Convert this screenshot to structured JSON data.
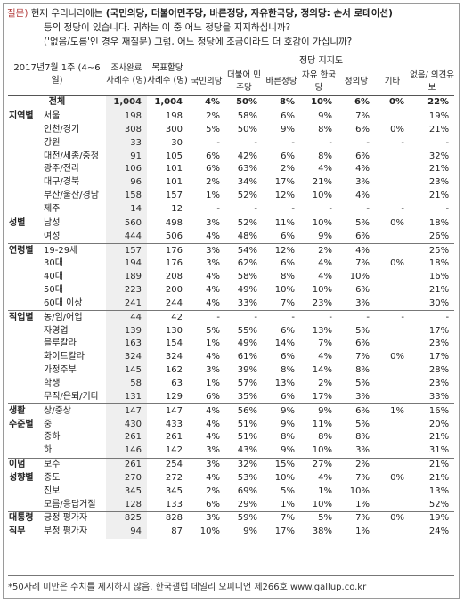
{
  "question": {
    "tag": "질문)",
    "line1_prefix": "현재 우리나라에는",
    "line1_parties": "(국민의당, 더불어민주당, 바른정당, 자유한국당, 정의당: 순서 로테이션)",
    "line2": "등의 정당이 있습니다. 귀하는 이 중 어느 정당을 지지하십니까?",
    "line3": "('없음/모름'인 경우 재질문) 그럼, 어느 정당에 조금이라도 더 호감이 가십니까?"
  },
  "header": {
    "date": "2017년7월 1주 (4~6일)",
    "survey_count": "조사완료 사례수 (명)",
    "target_count": "목표할당 사례수 (명)",
    "group_title": "정당 지지도",
    "parties": [
      "국민의당",
      "더불어 민주당",
      "바른정당",
      "자유 한국당",
      "정의당",
      "기타",
      "없음/ 의견유보"
    ]
  },
  "rows": [
    {
      "cat": "",
      "label": "전체",
      "survey": "1,004",
      "target": "1,004",
      "vals": [
        "4%",
        "50%",
        "8%",
        "10%",
        "6%",
        "0%",
        "22%"
      ],
      "total": true
    },
    {
      "cat": "지역별",
      "label": "서울",
      "survey": "198",
      "target": "198",
      "vals": [
        "2%",
        "58%",
        "6%",
        "9%",
        "7%",
        "",
        "19%"
      ],
      "sep": true
    },
    {
      "cat": "",
      "label": "인천/경기",
      "survey": "308",
      "target": "300",
      "vals": [
        "5%",
        "50%",
        "9%",
        "8%",
        "6%",
        "0%",
        "21%"
      ]
    },
    {
      "cat": "",
      "label": "강원",
      "survey": "33",
      "target": "30",
      "vals": [
        "-",
        "-",
        "-",
        "-",
        "-",
        "-",
        "-"
      ]
    },
    {
      "cat": "",
      "label": "대전/세종/충청",
      "survey": "91",
      "target": "105",
      "vals": [
        "6%",
        "42%",
        "6%",
        "8%",
        "6%",
        "",
        "32%"
      ]
    },
    {
      "cat": "",
      "label": "광주/전라",
      "survey": "106",
      "target": "101",
      "vals": [
        "6%",
        "63%",
        "2%",
        "4%",
        "4%",
        "",
        "21%"
      ]
    },
    {
      "cat": "",
      "label": "대구/경북",
      "survey": "96",
      "target": "101",
      "vals": [
        "2%",
        "34%",
        "17%",
        "21%",
        "3%",
        "",
        "23%"
      ]
    },
    {
      "cat": "",
      "label": "부산/울산/경남",
      "survey": "158",
      "target": "157",
      "vals": [
        "1%",
        "52%",
        "12%",
        "10%",
        "4%",
        "",
        "21%"
      ]
    },
    {
      "cat": "",
      "label": "제주",
      "survey": "14",
      "target": "12",
      "vals": [
        "-",
        "-",
        "-",
        "-",
        "-",
        "-",
        "-"
      ]
    },
    {
      "cat": "성별",
      "label": "남성",
      "survey": "560",
      "target": "498",
      "vals": [
        "3%",
        "52%",
        "11%",
        "10%",
        "5%",
        "0%",
        "18%"
      ],
      "sep": true
    },
    {
      "cat": "",
      "label": "여성",
      "survey": "444",
      "target": "506",
      "vals": [
        "4%",
        "48%",
        "6%",
        "9%",
        "6%",
        "",
        "26%"
      ]
    },
    {
      "cat": "연령별",
      "label": "19-29세",
      "survey": "157",
      "target": "176",
      "vals": [
        "3%",
        "54%",
        "12%",
        "2%",
        "4%",
        "",
        "25%"
      ],
      "sep": true
    },
    {
      "cat": "",
      "label": "30대",
      "survey": "194",
      "target": "176",
      "vals": [
        "3%",
        "62%",
        "6%",
        "4%",
        "7%",
        "0%",
        "18%"
      ]
    },
    {
      "cat": "",
      "label": "40대",
      "survey": "189",
      "target": "208",
      "vals": [
        "4%",
        "58%",
        "8%",
        "4%",
        "10%",
        "",
        "16%"
      ]
    },
    {
      "cat": "",
      "label": "50대",
      "survey": "223",
      "target": "200",
      "vals": [
        "4%",
        "49%",
        "10%",
        "10%",
        "6%",
        "",
        "21%"
      ]
    },
    {
      "cat": "",
      "label": "60대 이상",
      "survey": "241",
      "target": "244",
      "vals": [
        "4%",
        "33%",
        "7%",
        "23%",
        "3%",
        "",
        "30%"
      ]
    },
    {
      "cat": "직업별",
      "label": "농/임/어업",
      "survey": "44",
      "target": "42",
      "vals": [
        "-",
        "-",
        "-",
        "-",
        "-",
        "-",
        "-"
      ],
      "sep": true
    },
    {
      "cat": "",
      "label": "자영업",
      "survey": "139",
      "target": "130",
      "vals": [
        "5%",
        "55%",
        "6%",
        "13%",
        "5%",
        "",
        "17%"
      ]
    },
    {
      "cat": "",
      "label": "블루칼라",
      "survey": "163",
      "target": "154",
      "vals": [
        "1%",
        "49%",
        "14%",
        "7%",
        "6%",
        "",
        "23%"
      ]
    },
    {
      "cat": "",
      "label": "화이트칼라",
      "survey": "324",
      "target": "324",
      "vals": [
        "4%",
        "61%",
        "6%",
        "4%",
        "7%",
        "0%",
        "17%"
      ]
    },
    {
      "cat": "",
      "label": "가정주부",
      "survey": "145",
      "target": "162",
      "vals": [
        "3%",
        "39%",
        "8%",
        "14%",
        "8%",
        "",
        "28%"
      ]
    },
    {
      "cat": "",
      "label": "학생",
      "survey": "58",
      "target": "63",
      "vals": [
        "1%",
        "57%",
        "13%",
        "2%",
        "5%",
        "",
        "23%"
      ]
    },
    {
      "cat": "",
      "label": "무직/은퇴/기타",
      "survey": "131",
      "target": "129",
      "vals": [
        "6%",
        "35%",
        "6%",
        "17%",
        "3%",
        "",
        "33%"
      ]
    },
    {
      "cat": "생활",
      "label": "상/중상",
      "survey": "147",
      "target": "147",
      "vals": [
        "4%",
        "56%",
        "9%",
        "9%",
        "6%",
        "1%",
        "16%"
      ],
      "sep": true
    },
    {
      "cat": "수준별",
      "label": "중",
      "survey": "430",
      "target": "433",
      "vals": [
        "4%",
        "51%",
        "9%",
        "11%",
        "5%",
        "",
        "20%"
      ]
    },
    {
      "cat": "",
      "label": "중하",
      "survey": "261",
      "target": "261",
      "vals": [
        "4%",
        "51%",
        "8%",
        "8%",
        "8%",
        "",
        "21%"
      ]
    },
    {
      "cat": "",
      "label": "하",
      "survey": "146",
      "target": "142",
      "vals": [
        "3%",
        "43%",
        "9%",
        "10%",
        "3%",
        "",
        "31%"
      ]
    },
    {
      "cat": "이념",
      "label": "보수",
      "survey": "261",
      "target": "254",
      "vals": [
        "3%",
        "32%",
        "15%",
        "27%",
        "2%",
        "",
        "21%"
      ],
      "sep": true
    },
    {
      "cat": "성향별",
      "label": "중도",
      "survey": "270",
      "target": "272",
      "vals": [
        "4%",
        "53%",
        "10%",
        "4%",
        "7%",
        "0%",
        "21%"
      ]
    },
    {
      "cat": "",
      "label": "진보",
      "survey": "345",
      "target": "345",
      "vals": [
        "2%",
        "69%",
        "5%",
        "1%",
        "10%",
        "",
        "13%"
      ]
    },
    {
      "cat": "",
      "label": "모름/응답거절",
      "survey": "128",
      "target": "133",
      "vals": [
        "6%",
        "29%",
        "1%",
        "10%",
        "1%",
        "",
        "52%"
      ]
    },
    {
      "cat": "대통령",
      "label": "긍정 평가자",
      "survey": "825",
      "target": "828",
      "vals": [
        "3%",
        "59%",
        "7%",
        "5%",
        "7%",
        "0%",
        "19%"
      ],
      "sep": true
    },
    {
      "cat": "직무",
      "label": "부정 평가자",
      "survey": "94",
      "target": "87",
      "vals": [
        "10%",
        "9%",
        "17%",
        "38%",
        "1%",
        "",
        "24%"
      ]
    }
  ],
  "footnote": "*50사례 미만은 수치를 제시하지 않음. 한국갤럽 데일리 오피니언 제266호 www.gallup.co.kr"
}
